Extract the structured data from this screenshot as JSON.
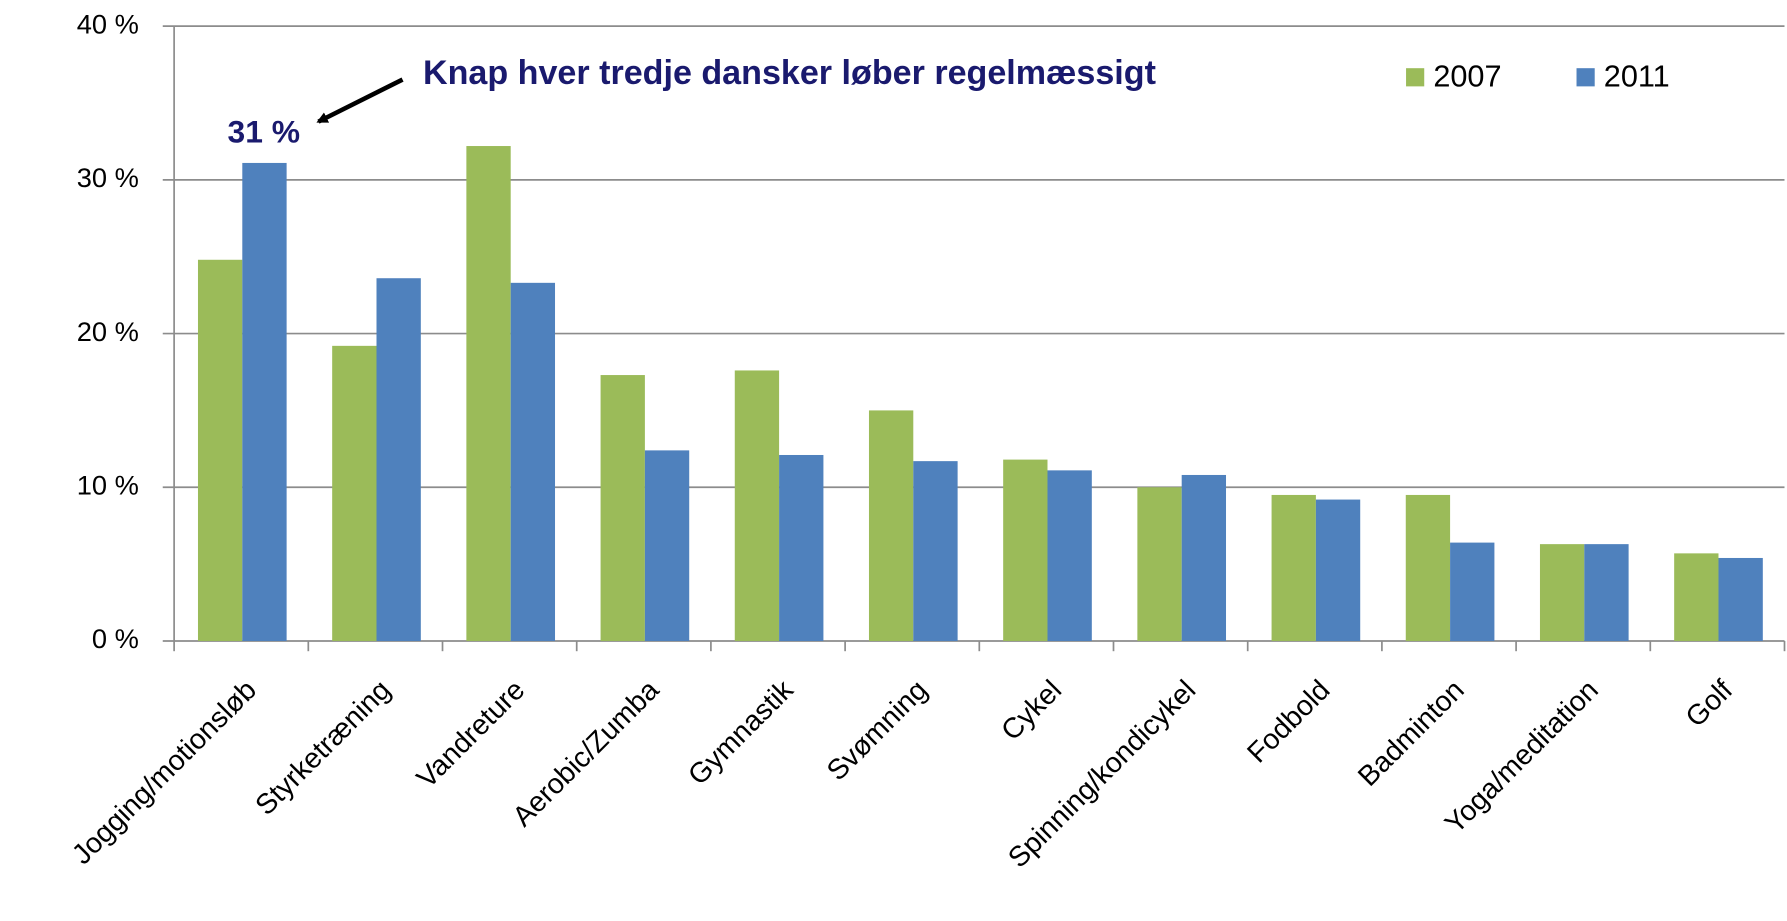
{
  "chart_data": {
    "type": "bar",
    "categories": [
      "Jogging/motionsløb",
      "Styrketræning",
      "Vandreture",
      "Aerobic/Zumba",
      "Gymnastik",
      "Svømning",
      "Cykel",
      "Spinning/kondicykel",
      "Fodbold",
      "Badminton",
      "Yoga/meditation",
      "Golf"
    ],
    "series": [
      {
        "name": "2007",
        "color": "#9bbb59",
        "values": [
          24.8,
          19.2,
          32.2,
          17.3,
          17.6,
          15.0,
          11.8,
          10.0,
          9.5,
          9.5,
          6.3,
          5.7
        ]
      },
      {
        "name": "2011",
        "color": "#4f81bd",
        "values": [
          31.1,
          23.6,
          23.3,
          12.4,
          12.1,
          11.7,
          11.1,
          10.8,
          9.2,
          6.4,
          6.3,
          5.4
        ]
      }
    ],
    "ylim": [
      0,
      40
    ],
    "yticks": [
      {
        "value": 0,
        "label": "0 %"
      },
      {
        "value": 10,
        "label": "10 %"
      },
      {
        "value": 20,
        "label": "20 %"
      },
      {
        "value": 30,
        "label": "30 %"
      },
      {
        "value": 40,
        "label": "40 %"
      }
    ],
    "grid": true,
    "legend": "top-right",
    "annotations": [
      "Knap hver tredje dansker løber regelmæssigt",
      "31 %"
    ]
  }
}
